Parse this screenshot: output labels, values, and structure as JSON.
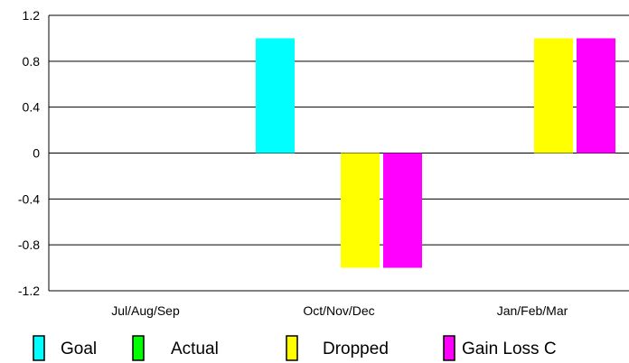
{
  "chart_data": {
    "type": "bar",
    "categories": [
      "Jul/Aug/Sep",
      "Oct/Nov/Dec",
      "Jan/Feb/Mar"
    ],
    "series": [
      {
        "name": "Goal",
        "values": [
          0,
          1,
          0
        ],
        "color": "#00FFFF"
      },
      {
        "name": "Actual",
        "values": [
          0,
          0,
          0
        ],
        "color": "#00FF00"
      },
      {
        "name": "Dropped",
        "values": [
          0,
          -1,
          1
        ],
        "color": "#FFFF00"
      },
      {
        "name": "Gain Loss C",
        "values": [
          0,
          -1,
          1
        ],
        "color": "#FF00FF"
      }
    ],
    "ylim": [
      -1.2,
      1.2
    ],
    "yticks": [
      "1.2",
      "0.8",
      "0.4",
      "0",
      "-0.4",
      "-0.8",
      "-1.2"
    ],
    "ytick_values": [
      1.2,
      0.8,
      0.4,
      0,
      -0.4,
      -0.8,
      -1.2
    ],
    "grid": true,
    "legend_position": "bottom",
    "title": "",
    "xlabel": "",
    "ylabel": ""
  }
}
